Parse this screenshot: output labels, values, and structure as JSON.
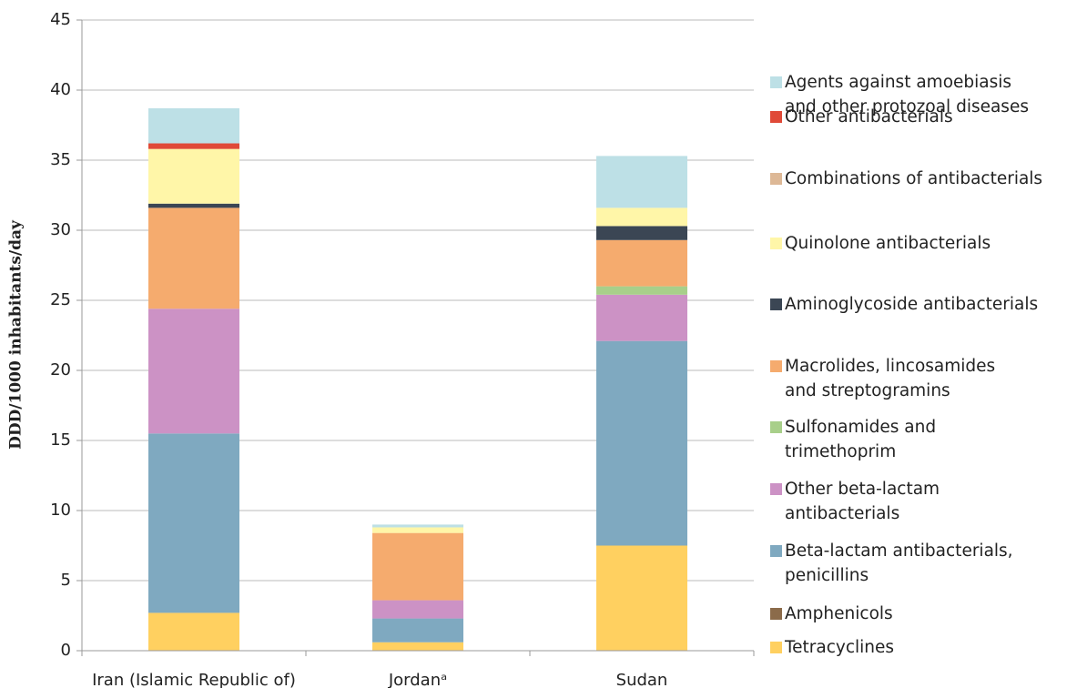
{
  "chart_data": {
    "type": "stacked-bar",
    "y_label": "DDD/1000 inhabitants/day",
    "categories": [
      "Iran  (Islamic Republic of)",
      "Jordanᵃ",
      "Sudan"
    ],
    "series": [
      {
        "name": "Tetracyclines",
        "color": "#ffd060",
        "values": [
          2.7,
          0.6,
          7.5
        ]
      },
      {
        "name": "Amphenicols",
        "color": "#8b6b4a",
        "values": [
          0,
          0,
          0
        ]
      },
      {
        "name": "Beta-lactam antibacterials,\npenicillins",
        "color": "#7fa9c0",
        "values": [
          12.8,
          1.7,
          14.6
        ]
      },
      {
        "name": "Other beta-lactam\nantibacterials",
        "color": "#cc92c5",
        "values": [
          8.9,
          1.3,
          3.3
        ]
      },
      {
        "name": "Sulfonamides and\ntrimethoprim",
        "color": "#a8cf8a",
        "values": [
          0,
          0,
          0.6
        ]
      },
      {
        "name": "Macrolides, lincosamides\nand streptogramins",
        "color": "#f5ab6e",
        "values": [
          7.2,
          4.8,
          3.3
        ]
      },
      {
        "name": "Aminoglycoside antibacterials",
        "color": "#3b4654",
        "values": [
          0.3,
          0,
          1.0
        ]
      },
      {
        "name": "Quinolone antibacterials",
        "color": "#fff6a8",
        "values": [
          3.9,
          0.4,
          1.3
        ]
      },
      {
        "name": "Combinations of antibacterials",
        "color": "#ddb896",
        "values": [
          0,
          0,
          0
        ]
      },
      {
        "name": "Other antibacterials",
        "color": "#e04a38",
        "values": [
          0.4,
          0,
          0
        ]
      },
      {
        "name": "Agents against amoebiasis\nand other protozoal diseases",
        "color": "#bde0e6",
        "values": [
          2.5,
          0.2,
          3.7
        ]
      }
    ],
    "ylim": [
      0,
      45
    ],
    "yticks": [
      0,
      5,
      10,
      15,
      20,
      25,
      30,
      35,
      40,
      45
    ],
    "grid": true
  }
}
